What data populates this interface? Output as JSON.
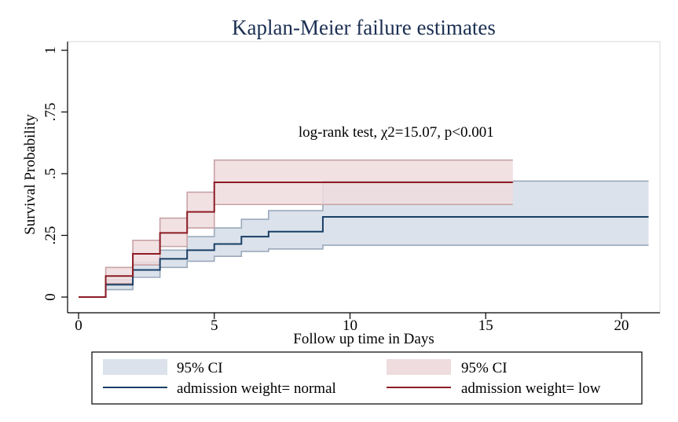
{
  "chart_data": {
    "type": "line",
    "subtype": "kaplan-meier-step",
    "title": "Kaplan-Meier failure estimates",
    "xlabel": "Follow up time in Days",
    "ylabel": "Survival Probability",
    "xlim": [
      0,
      21
    ],
    "ylim": [
      0,
      1
    ],
    "xticks": [
      0,
      5,
      10,
      15,
      20
    ],
    "xtick_labels": [
      "0",
      "5",
      "10",
      "15",
      "20"
    ],
    "yticks": [
      0,
      0.25,
      0.5,
      0.75,
      1
    ],
    "ytick_labels": [
      "0",
      ".25",
      ".5",
      ".75",
      "1"
    ],
    "grid": false,
    "annotation": "log-rank test, χ2=15.07, p<0.001",
    "annotation_anchor": {
      "x": 8.1,
      "y": 0.65
    },
    "legend_position": "bottom",
    "series": [
      {
        "name": "admission weight= normal",
        "ci_label": "95% CI",
        "color": "#1a3f66",
        "ci_fill": "#dbe2eb",
        "ci_edge": "#9aa9bb",
        "end_time": 21,
        "steps": [
          {
            "t": 0,
            "v": 0,
            "lo": 0,
            "hi": 0
          },
          {
            "t": 1,
            "v": 0.05,
            "lo": 0.03,
            "hi": 0.07
          },
          {
            "t": 2,
            "v": 0.11,
            "lo": 0.08,
            "hi": 0.14
          },
          {
            "t": 3,
            "v": 0.155,
            "lo": 0.12,
            "hi": 0.19
          },
          {
            "t": 4,
            "v": 0.19,
            "lo": 0.145,
            "hi": 0.245
          },
          {
            "t": 5,
            "v": 0.215,
            "lo": 0.165,
            "hi": 0.28
          },
          {
            "t": 6,
            "v": 0.245,
            "lo": 0.185,
            "hi": 0.315
          },
          {
            "t": 7,
            "v": 0.265,
            "lo": 0.195,
            "hi": 0.35
          },
          {
            "t": 9,
            "v": 0.325,
            "lo": 0.21,
            "hi": 0.47
          }
        ]
      },
      {
        "name": "admission weight= low",
        "ci_label": "95% CI",
        "color": "#8c1c24",
        "ci_fill": "#eedcde",
        "ci_edge": "#c9a3a6",
        "end_time": 16,
        "steps": [
          {
            "t": 0,
            "v": 0,
            "lo": 0,
            "hi": 0
          },
          {
            "t": 1,
            "v": 0.085,
            "lo": 0.055,
            "hi": 0.12
          },
          {
            "t": 2,
            "v": 0.175,
            "lo": 0.13,
            "hi": 0.23
          },
          {
            "t": 3,
            "v": 0.26,
            "lo": 0.205,
            "hi": 0.32
          },
          {
            "t": 4,
            "v": 0.345,
            "lo": 0.28,
            "hi": 0.425
          },
          {
            "t": 5,
            "v": 0.465,
            "lo": 0.375,
            "hi": 0.555
          }
        ]
      }
    ]
  }
}
